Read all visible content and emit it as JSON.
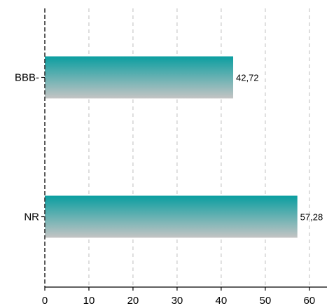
{
  "chart_data": {
    "type": "bar",
    "orientation": "horizontal",
    "categories": [
      "BBB-",
      "NR"
    ],
    "values": [
      42.72,
      57.28
    ],
    "value_labels": [
      "42,72",
      "57,28"
    ],
    "xlim": [
      0,
      64
    ],
    "xticks": [
      0,
      10,
      20,
      30,
      40,
      50,
      60
    ],
    "title": "",
    "xlabel": "",
    "ylabel": "",
    "grid": "vertical dashed",
    "bar_colors": {
      "top": "#0a9ea0",
      "bottom": "#c4c4c4"
    },
    "grid_color": "#c8c8c8"
  }
}
